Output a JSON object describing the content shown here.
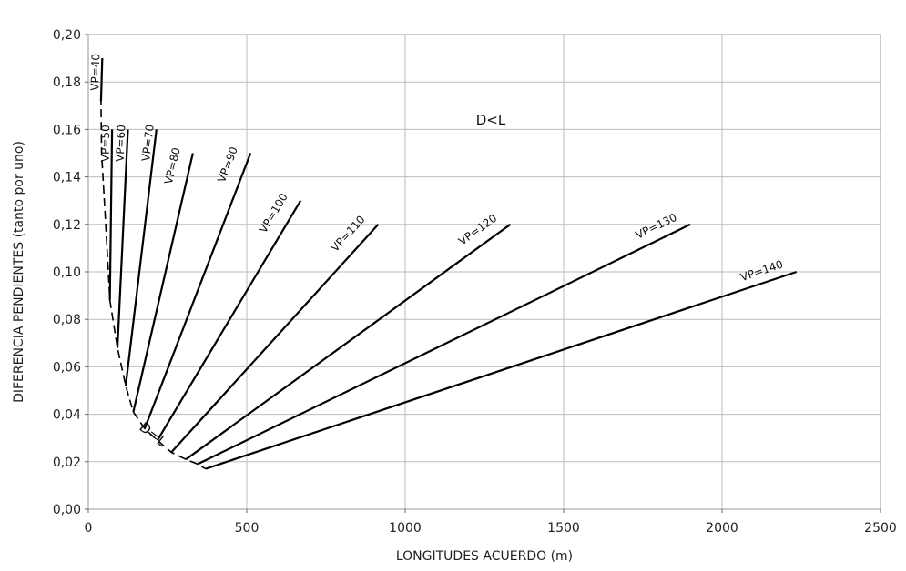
{
  "chart_data": {
    "type": "line",
    "xlabel": "LONGITUDES ACUERDO (m)",
    "ylabel": "DIFERENCIA PENDIENTES (tanto por uno)",
    "xlim": [
      0,
      2500
    ],
    "ylim": [
      0,
      0.2
    ],
    "x_ticks": [
      0,
      500,
      1000,
      1500,
      2000,
      2500
    ],
    "x_tick_labels": [
      "0",
      "500",
      "1000",
      "1500",
      "2000",
      "2500"
    ],
    "y_ticks": [
      0,
      0.02,
      0.04,
      0.06,
      0.08,
      0.1,
      0.12,
      0.14,
      0.16,
      0.18,
      0.2
    ],
    "y_tick_labels": [
      "0,00",
      "0,02",
      "0,04",
      "0,06",
      "0,08",
      "0,10",
      "0,12",
      "0,14",
      "0,16",
      "0,18",
      "0,20"
    ],
    "grid": true,
    "series": [
      {
        "name": "VP=40",
        "x": [
          40,
          44
        ],
        "y": [
          0.172,
          0.19
        ]
      },
      {
        "name": "VP=50",
        "x": [
          68,
          75
        ],
        "y": [
          0.088,
          0.16
        ]
      },
      {
        "name": "VP=60",
        "x": [
          92,
          125
        ],
        "y": [
          0.068,
          0.16
        ]
      },
      {
        "name": "VP=70",
        "x": [
          118,
          215
        ],
        "y": [
          0.052,
          0.16
        ]
      },
      {
        "name": "VP=80",
        "x": [
          142,
          330
        ],
        "y": [
          0.041,
          0.15
        ]
      },
      {
        "name": "VP=90",
        "x": [
          178,
          512
        ],
        "y": [
          0.034,
          0.15
        ]
      },
      {
        "name": "VP=100",
        "x": [
          218,
          670
        ],
        "y": [
          0.029,
          0.13
        ]
      },
      {
        "name": "VP=110",
        "x": [
          262,
          915
        ],
        "y": [
          0.024,
          0.12
        ]
      },
      {
        "name": "VP=120",
        "x": [
          308,
          1332
        ],
        "y": [
          0.021,
          0.12
        ]
      },
      {
        "name": "VP=130",
        "x": [
          345,
          1900
        ],
        "y": [
          0.019,
          0.12
        ]
      },
      {
        "name": "VP=140",
        "x": [
          370,
          2235
        ],
        "y": [
          0.017,
          0.1
        ]
      }
    ],
    "boundary": {
      "name": "D=L",
      "x": [
        44,
        40,
        42,
        55,
        68,
        92,
        118,
        142,
        178,
        218,
        262,
        308,
        345,
        370
      ],
      "y": [
        0.19,
        0.172,
        0.15,
        0.12,
        0.088,
        0.068,
        0.052,
        0.041,
        0.034,
        0.029,
        0.024,
        0.021,
        0.019,
        0.017
      ]
    },
    "annotations": [
      {
        "text": "D<L",
        "x": 1270,
        "y": 0.164
      },
      {
        "text": "D=L",
        "x": 195,
        "y": 0.03
      }
    ]
  }
}
